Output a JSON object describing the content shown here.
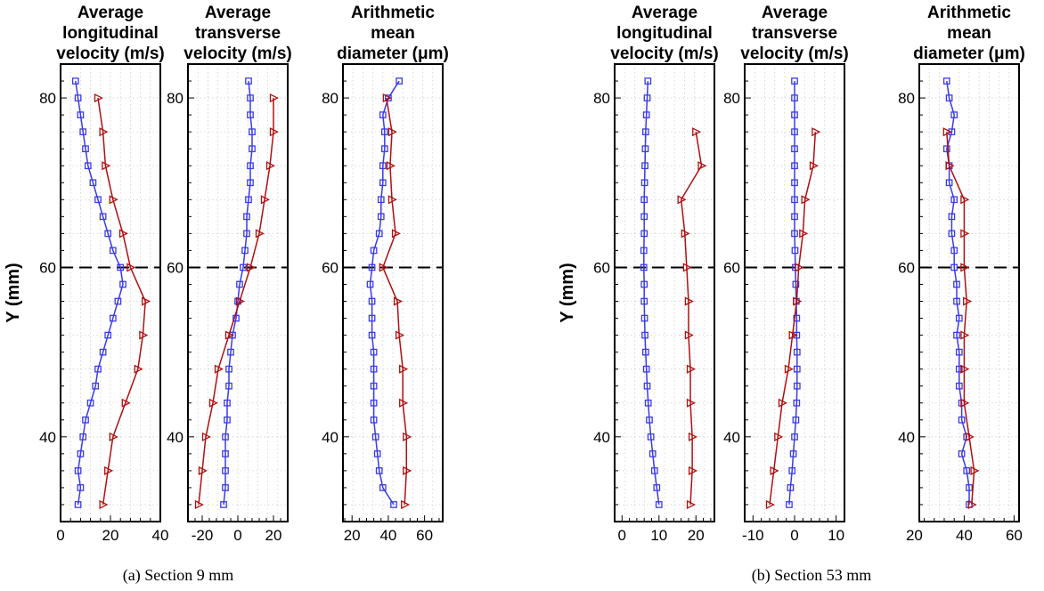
{
  "captions": [
    "(a) Section 9 mm",
    "(b) Section 53 mm"
  ],
  "colors": {
    "blue": "#3b3be8",
    "red": "#b01010"
  },
  "chart_data": [
    {
      "type": "line",
      "title": [
        "Average",
        "longitudinal",
        "velocity (m/s)"
      ],
      "ylabel": "Y (mm)",
      "xlim": [
        0,
        40
      ],
      "xticks": [
        0,
        20,
        40
      ],
      "ylim": [
        30,
        84
      ],
      "yticks": [
        40,
        60,
        80
      ],
      "hline": 60,
      "series": [
        {
          "color": "blue",
          "marker": "square",
          "points": [
            [
              6,
              82
            ],
            [
              7,
              80
            ],
            [
              8,
              78
            ],
            [
              9,
              76
            ],
            [
              10,
              74
            ],
            [
              11,
              72
            ],
            [
              13,
              70
            ],
            [
              15,
              68
            ],
            [
              17,
              66
            ],
            [
              19,
              64
            ],
            [
              21,
              62
            ],
            [
              24,
              60
            ],
            [
              25,
              58
            ],
            [
              23,
              56
            ],
            [
              21,
              54
            ],
            [
              19,
              52
            ],
            [
              17,
              50
            ],
            [
              15,
              48
            ],
            [
              14,
              46
            ],
            [
              12,
              44
            ],
            [
              10,
              42
            ],
            [
              9,
              40
            ],
            [
              8,
              38
            ],
            [
              7,
              36
            ],
            [
              8,
              34
            ],
            [
              7,
              32
            ]
          ]
        },
        {
          "color": "red",
          "marker": "triangle",
          "points": [
            [
              15,
              80
            ],
            [
              17,
              76
            ],
            [
              18,
              72
            ],
            [
              21,
              68
            ],
            [
              25,
              64
            ],
            [
              28,
              60
            ],
            [
              34,
              56
            ],
            [
              33,
              52
            ],
            [
              31,
              48
            ],
            [
              26,
              44
            ],
            [
              21,
              40
            ],
            [
              19,
              36
            ],
            [
              17,
              32
            ]
          ]
        }
      ]
    },
    {
      "type": "line",
      "title": [
        "Average",
        "transverse",
        "velocity (m/s)"
      ],
      "ylabel": "",
      "xlim": [
        -28,
        28
      ],
      "xticks": [
        -20,
        0,
        20
      ],
      "ylim": [
        30,
        84
      ],
      "yticks": [
        40,
        60,
        80
      ],
      "hline": 60,
      "series": [
        {
          "color": "blue",
          "marker": "square",
          "points": [
            [
              6,
              82
            ],
            [
              7,
              80
            ],
            [
              7,
              78
            ],
            [
              8,
              76
            ],
            [
              8,
              74
            ],
            [
              7,
              72
            ],
            [
              7,
              70
            ],
            [
              6,
              68
            ],
            [
              5,
              66
            ],
            [
              5,
              64
            ],
            [
              4,
              62
            ],
            [
              3,
              60
            ],
            [
              1,
              58
            ],
            [
              0,
              56
            ],
            [
              -1,
              54
            ],
            [
              -3,
              52
            ],
            [
              -4,
              50
            ],
            [
              -5,
              48
            ],
            [
              -5,
              46
            ],
            [
              -6,
              44
            ],
            [
              -6,
              42
            ],
            [
              -7,
              40
            ],
            [
              -7,
              38
            ],
            [
              -7,
              36
            ],
            [
              -7,
              34
            ],
            [
              -8,
              32
            ]
          ]
        },
        {
          "color": "red",
          "marker": "triangle",
          "points": [
            [
              20,
              80
            ],
            [
              20,
              76
            ],
            [
              18,
              72
            ],
            [
              15,
              68
            ],
            [
              12,
              64
            ],
            [
              7,
              60
            ],
            [
              1,
              56
            ],
            [
              -5,
              52
            ],
            [
              -11,
              48
            ],
            [
              -14,
              44
            ],
            [
              -18,
              40
            ],
            [
              -20,
              36
            ],
            [
              -22,
              32
            ]
          ]
        }
      ]
    },
    {
      "type": "line",
      "title": [
        "Arithmetic",
        "mean",
        "diameter (μm)"
      ],
      "ylabel": "",
      "xlim": [
        15,
        70
      ],
      "xticks": [
        20,
        40,
        60
      ],
      "ylim": [
        30,
        84
      ],
      "yticks": [
        40,
        60,
        80
      ],
      "hline": 60,
      "series": [
        {
          "color": "blue",
          "marker": "square",
          "points": [
            [
              46,
              82
            ],
            [
              40,
              80
            ],
            [
              37,
              78
            ],
            [
              38,
              76
            ],
            [
              38,
              74
            ],
            [
              37,
              72
            ],
            [
              37,
              70
            ],
            [
              36,
              68
            ],
            [
              36,
              66
            ],
            [
              35,
              64
            ],
            [
              32,
              62
            ],
            [
              31,
              60
            ],
            [
              30,
              58
            ],
            [
              31,
              56
            ],
            [
              31,
              54
            ],
            [
              31,
              52
            ],
            [
              32,
              50
            ],
            [
              32,
              48
            ],
            [
              32,
              46
            ],
            [
              32,
              44
            ],
            [
              32,
              42
            ],
            [
              33,
              40
            ],
            [
              34,
              38
            ],
            [
              35,
              36
            ],
            [
              37,
              34
            ],
            [
              43,
              32
            ]
          ]
        },
        {
          "color": "red",
          "marker": "triangle",
          "points": [
            [
              39,
              80
            ],
            [
              42,
              76
            ],
            [
              41,
              72
            ],
            [
              42,
              68
            ],
            [
              44,
              64
            ],
            [
              37,
              60
            ],
            [
              45,
              56
            ],
            [
              46,
              52
            ],
            [
              48,
              48
            ],
            [
              48,
              44
            ],
            [
              50,
              40
            ],
            [
              50,
              36
            ],
            [
              49,
              32
            ]
          ]
        }
      ]
    },
    {
      "type": "line",
      "title": [
        "Average",
        "longitudinal",
        "velocity (m/s)"
      ],
      "ylabel": "Y (mm)",
      "xlim": [
        -2,
        25
      ],
      "xticks": [
        0,
        10,
        20
      ],
      "ylim": [
        30,
        84
      ],
      "yticks": [
        40,
        60,
        80
      ],
      "hline": 60,
      "series": [
        {
          "color": "blue",
          "marker": "square",
          "points": [
            [
              7,
              82
            ],
            [
              6.8,
              80
            ],
            [
              6.6,
              78
            ],
            [
              6.4,
              76
            ],
            [
              6.3,
              74
            ],
            [
              6.2,
              72
            ],
            [
              6.1,
              70
            ],
            [
              6,
              68
            ],
            [
              6,
              66
            ],
            [
              6,
              64
            ],
            [
              5.9,
              62
            ],
            [
              5.9,
              60
            ],
            [
              6,
              58
            ],
            [
              6,
              56
            ],
            [
              6.1,
              54
            ],
            [
              6.2,
              52
            ],
            [
              6.4,
              50
            ],
            [
              6.6,
              48
            ],
            [
              6.8,
              46
            ],
            [
              7.1,
              44
            ],
            [
              7.4,
              42
            ],
            [
              7.8,
              40
            ],
            [
              8.3,
              38
            ],
            [
              8.8,
              36
            ],
            [
              9.4,
              34
            ],
            [
              10,
              32
            ]
          ]
        },
        {
          "color": "red",
          "marker": "triangle",
          "points": [
            [
              20,
              76
            ],
            [
              21.5,
              72
            ],
            [
              16,
              68
            ],
            [
              17,
              64
            ],
            [
              17.5,
              60
            ],
            [
              18,
              56
            ],
            [
              18,
              52
            ],
            [
              18.5,
              48
            ],
            [
              18.5,
              44
            ],
            [
              19,
              40
            ],
            [
              19,
              36
            ],
            [
              18.5,
              32
            ]
          ]
        }
      ]
    },
    {
      "type": "line",
      "title": [
        "Average",
        "transverse",
        "velocity (m/s)"
      ],
      "ylabel": "",
      "xlim": [
        -12,
        12
      ],
      "xticks": [
        -10,
        0,
        10
      ],
      "ylim": [
        30,
        84
      ],
      "yticks": [
        40,
        60,
        80
      ],
      "hline": 60,
      "series": [
        {
          "color": "blue",
          "marker": "square",
          "points": [
            [
              0,
              82
            ],
            [
              0,
              80
            ],
            [
              0,
              78
            ],
            [
              0,
              76
            ],
            [
              0,
              74
            ],
            [
              0,
              72
            ],
            [
              0,
              70
            ],
            [
              0,
              68
            ],
            [
              0,
              66
            ],
            [
              0,
              64
            ],
            [
              0.1,
              62
            ],
            [
              0.2,
              60
            ],
            [
              0.3,
              58
            ],
            [
              0.4,
              56
            ],
            [
              0.5,
              54
            ],
            [
              0.5,
              52
            ],
            [
              0.6,
              50
            ],
            [
              0.6,
              48
            ],
            [
              0.6,
              46
            ],
            [
              0.5,
              44
            ],
            [
              0.3,
              42
            ],
            [
              0,
              40
            ],
            [
              -0.3,
              38
            ],
            [
              -0.6,
              36
            ],
            [
              -1,
              34
            ],
            [
              -1.3,
              32
            ]
          ]
        },
        {
          "color": "red",
          "marker": "triangle",
          "points": [
            [
              5,
              76
            ],
            [
              4.5,
              72
            ],
            [
              2.5,
              68
            ],
            [
              2,
              64
            ],
            [
              1,
              60
            ],
            [
              0.5,
              56
            ],
            [
              -0.5,
              52
            ],
            [
              -1.5,
              48
            ],
            [
              -3,
              44
            ],
            [
              -4,
              40
            ],
            [
              -5,
              36
            ],
            [
              -6,
              32
            ]
          ]
        }
      ]
    },
    {
      "type": "line",
      "title": [
        "Arithmetic",
        "mean",
        "diameter (μm)"
      ],
      "ylabel": "",
      "xlim": [
        22,
        62
      ],
      "xticks": [
        20,
        40,
        60
      ],
      "ylim": [
        30,
        84
      ],
      "yticks": [
        40,
        60,
        80
      ],
      "hline": 60,
      "series": [
        {
          "color": "blue",
          "marker": "square",
          "points": [
            [
              33,
              82
            ],
            [
              34,
              80
            ],
            [
              36,
              78
            ],
            [
              35,
              76
            ],
            [
              33,
              74
            ],
            [
              34,
              72
            ],
            [
              34,
              70
            ],
            [
              36,
              68
            ],
            [
              35,
              66
            ],
            [
              35,
              64
            ],
            [
              36,
              62
            ],
            [
              36,
              60
            ],
            [
              37,
              58
            ],
            [
              37,
              56
            ],
            [
              38,
              54
            ],
            [
              37,
              52
            ],
            [
              38,
              50
            ],
            [
              38,
              48
            ],
            [
              38,
              46
            ],
            [
              39,
              44
            ],
            [
              39,
              42
            ],
            [
              41,
              40
            ],
            [
              39,
              38
            ],
            [
              41,
              36
            ],
            [
              42,
              34
            ],
            [
              42,
              32
            ]
          ]
        },
        {
          "color": "red",
          "marker": "triangle",
          "points": [
            [
              33,
              76
            ],
            [
              34,
              72
            ],
            [
              40,
              68
            ],
            [
              40,
              64
            ],
            [
              40,
              60
            ],
            [
              41,
              56
            ],
            [
              40,
              52
            ],
            [
              40,
              48
            ],
            [
              40,
              44
            ],
            [
              42,
              40
            ],
            [
              44,
              36
            ],
            [
              43,
              32
            ]
          ]
        }
      ]
    }
  ]
}
